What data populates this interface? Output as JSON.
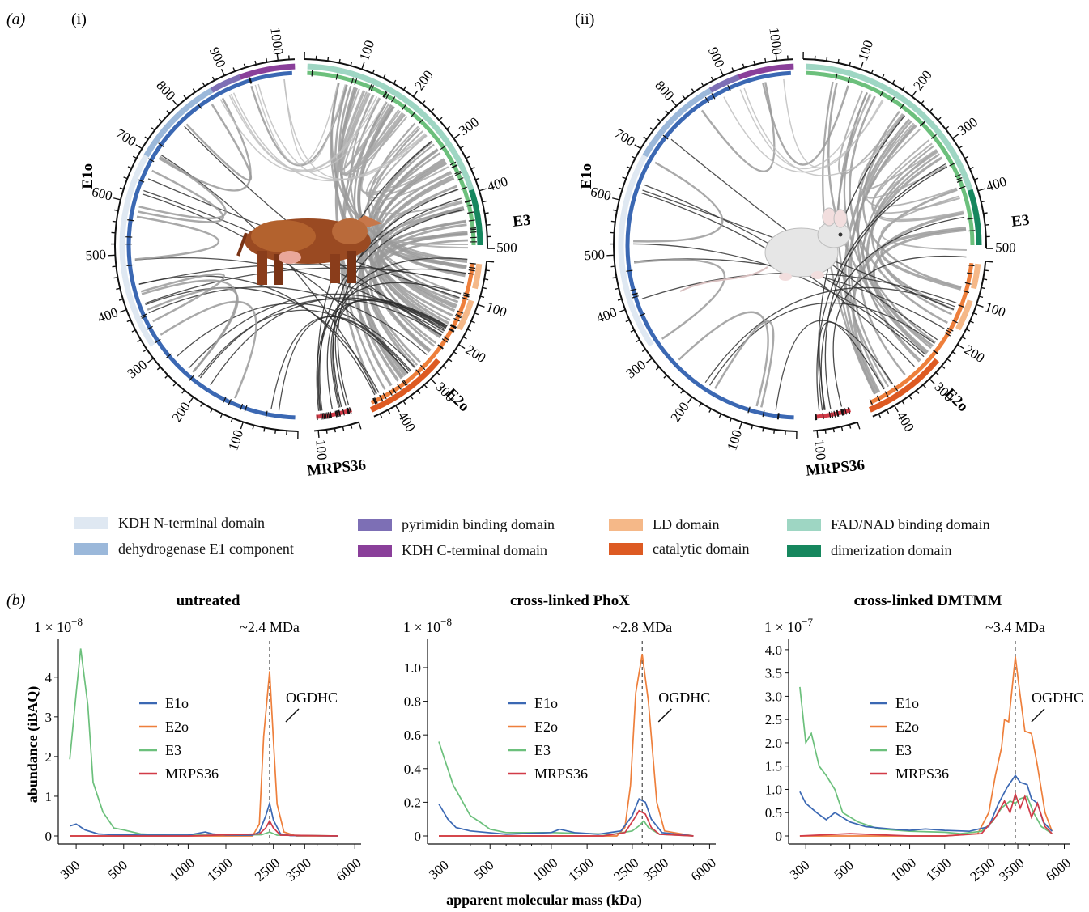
{
  "panel_labels": {
    "a": "(a)",
    "b": "(b)",
    "i": "(i)",
    "ii": "(ii)"
  },
  "circos": {
    "protein_labels": {
      "e1o": "E1o",
      "e2o": "E2o",
      "e3": "E3",
      "mrps36": "MRPS36"
    },
    "e1o_ticks": [
      "100",
      "200",
      "300",
      "400",
      "500",
      "600",
      "700",
      "800",
      "900",
      "1000"
    ],
    "e3_ticks": [
      "100",
      "200",
      "300",
      "400",
      "500"
    ],
    "e2o_ticks": [
      "100",
      "200",
      "300",
      "400"
    ],
    "mrps36_ticks": [
      "100"
    ],
    "left_image": "cow-illustration",
    "right_image": "mouse-illustration"
  },
  "legend": [
    {
      "label": "KDH N-terminal domain",
      "color": "#dfe8f2"
    },
    {
      "label": "dehydrogenase E1 component",
      "color": "#9bb8da"
    },
    {
      "label": "pyrimidin binding domain",
      "color": "#7d6fb5"
    },
    {
      "label": "KDH C-terminal domain",
      "color": "#8a3f9a"
    },
    {
      "label": "LD domain",
      "color": "#f5b888"
    },
    {
      "label": "catalytic domain",
      "color": "#dd5a22"
    },
    {
      "label": "FAD/NAD binding domain",
      "color": "#9ed6c3"
    },
    {
      "label": "dimerization domain",
      "color": "#16875e"
    }
  ],
  "colors": {
    "E1o": "#3b68b3",
    "E2o": "#ee7f3b",
    "E3": "#6cc07c",
    "MRPS36": "#d13b48"
  },
  "axis_label_y": "abundance (iBAQ)",
  "axis_label_x": "apparent molecular mass (kDa)",
  "chart_data": [
    {
      "type": "line",
      "title": "untreated",
      "multiplier": "1 × 10",
      "exponent": "−8",
      "ylim": [
        0,
        4.75
      ],
      "yticks": [
        "0",
        "1",
        "2",
        "3",
        "4"
      ],
      "xticks": [
        "300",
        "500",
        "1000",
        "1500",
        "2500",
        "3500",
        "6000"
      ],
      "xscale": "log",
      "peak_label": "~2.4 MDa",
      "peak_x": 2400,
      "annotation": "OGDHC",
      "series": [
        {
          "name": "E1o",
          "points": [
            [
              280,
              0.25
            ],
            [
              300,
              0.3
            ],
            [
              330,
              0.15
            ],
            [
              380,
              0.05
            ],
            [
              450,
              0.03
            ],
            [
              600,
              0.02
            ],
            [
              1000,
              0.02
            ],
            [
              1200,
              0.1
            ],
            [
              1300,
              0.05
            ],
            [
              1500,
              0.02
            ],
            [
              2000,
              0.02
            ],
            [
              2150,
              0.1
            ],
            [
              2300,
              0.5
            ],
            [
              2400,
              0.82
            ],
            [
              2500,
              0.4
            ],
            [
              2700,
              0.05
            ],
            [
              3000,
              0.01
            ],
            [
              5000,
              0.0
            ]
          ]
        },
        {
          "name": "E2o",
          "points": [
            [
              280,
              0.0
            ],
            [
              1000,
              0.0
            ],
            [
              2000,
              0.0
            ],
            [
              2150,
              0.3
            ],
            [
              2250,
              2.5
            ],
            [
              2400,
              4.15
            ],
            [
              2500,
              2.4
            ],
            [
              2600,
              0.8
            ],
            [
              2800,
              0.1
            ],
            [
              3200,
              0.0
            ],
            [
              5000,
              0.0
            ]
          ]
        },
        {
          "name": "E3",
          "points": [
            [
              280,
              1.93
            ],
            [
              300,
              3.6
            ],
            [
              315,
              4.72
            ],
            [
              340,
              3.3
            ],
            [
              360,
              1.35
            ],
            [
              400,
              0.6
            ],
            [
              450,
              0.2
            ],
            [
              500,
              0.15
            ],
            [
              600,
              0.05
            ],
            [
              800,
              0.02
            ],
            [
              1500,
              0.02
            ],
            [
              2200,
              0.03
            ],
            [
              2400,
              0.1
            ],
            [
              2600,
              0.02
            ],
            [
              5000,
              0.0
            ]
          ]
        },
        {
          "name": "MRPS36",
          "points": [
            [
              280,
              0.0
            ],
            [
              1000,
              0.0
            ],
            [
              2150,
              0.05
            ],
            [
              2300,
              0.2
            ],
            [
              2400,
              0.38
            ],
            [
              2500,
              0.2
            ],
            [
              2700,
              0.02
            ],
            [
              5000,
              0.0
            ]
          ]
        }
      ]
    },
    {
      "type": "line",
      "title": "cross-linked PhoX",
      "multiplier": "1 × 10",
      "exponent": "−8",
      "ylim": [
        0,
        1.12
      ],
      "yticks": [
        "0",
        "0.2",
        "0.4",
        "0.6",
        "0.8",
        "1.0"
      ],
      "xticks": [
        "300",
        "500",
        "1000",
        "1500",
        "2500",
        "3500",
        "6000"
      ],
      "xscale": "log",
      "peak_label": "~2.8 MDa",
      "peak_x": 2800,
      "annotation": "OGDHC",
      "series": [
        {
          "name": "E1o",
          "points": [
            [
              280,
              0.19
            ],
            [
              310,
              0.1
            ],
            [
              340,
              0.05
            ],
            [
              400,
              0.03
            ],
            [
              600,
              0.01
            ],
            [
              1000,
              0.02
            ],
            [
              1100,
              0.04
            ],
            [
              1300,
              0.02
            ],
            [
              1700,
              0.01
            ],
            [
              2200,
              0.03
            ],
            [
              2500,
              0.12
            ],
            [
              2700,
              0.22
            ],
            [
              2900,
              0.2
            ],
            [
              3100,
              0.1
            ],
            [
              3500,
              0.02
            ],
            [
              5000,
              0.0
            ]
          ]
        },
        {
          "name": "E2o",
          "points": [
            [
              280,
              0.0
            ],
            [
              1500,
              0.0
            ],
            [
              2100,
              0.0
            ],
            [
              2300,
              0.05
            ],
            [
              2450,
              0.3
            ],
            [
              2600,
              0.85
            ],
            [
              2800,
              1.08
            ],
            [
              3000,
              0.8
            ],
            [
              3300,
              0.2
            ],
            [
              3600,
              0.03
            ],
            [
              4000,
              0.02
            ],
            [
              5000,
              0.0
            ]
          ]
        },
        {
          "name": "E3",
          "points": [
            [
              280,
              0.56
            ],
            [
              300,
              0.45
            ],
            [
              330,
              0.3
            ],
            [
              360,
              0.22
            ],
            [
              400,
              0.12
            ],
            [
              450,
              0.08
            ],
            [
              500,
              0.04
            ],
            [
              600,
              0.02
            ],
            [
              1000,
              0.02
            ],
            [
              2000,
              0.01
            ],
            [
              2500,
              0.03
            ],
            [
              2700,
              0.06
            ],
            [
              2850,
              0.09
            ],
            [
              3000,
              0.05
            ],
            [
              3400,
              0.01
            ],
            [
              5000,
              0.0
            ]
          ]
        },
        {
          "name": "MRPS36",
          "points": [
            [
              280,
              0.0
            ],
            [
              1800,
              0.0
            ],
            [
              2300,
              0.02
            ],
            [
              2550,
              0.1
            ],
            [
              2700,
              0.15
            ],
            [
              2900,
              0.13
            ],
            [
              3100,
              0.05
            ],
            [
              3400,
              0.01
            ],
            [
              5000,
              0.0
            ]
          ]
        }
      ]
    },
    {
      "type": "line",
      "title": "cross-linked DMTMM",
      "multiplier": "1 × 10",
      "exponent": "−7",
      "ylim": [
        0,
        4.05
      ],
      "yticks": [
        "0",
        "0.5",
        "1.0",
        "1.5",
        "2.0",
        "2.5",
        "3.0",
        "3.5",
        "4.0"
      ],
      "xticks": [
        "300",
        "500",
        "1000",
        "1500",
        "2500",
        "3500",
        "6000"
      ],
      "xscale": "log",
      "peak_label": "~3.4 MDa",
      "peak_x": 3400,
      "annotation": "OGDHC",
      "series": [
        {
          "name": "E1o",
          "points": [
            [
              280,
              0.95
            ],
            [
              300,
              0.7
            ],
            [
              340,
              0.5
            ],
            [
              380,
              0.35
            ],
            [
              420,
              0.5
            ],
            [
              500,
              0.3
            ],
            [
              600,
              0.2
            ],
            [
              800,
              0.15
            ],
            [
              1000,
              0.12
            ],
            [
              1200,
              0.15
            ],
            [
              1500,
              0.12
            ],
            [
              2000,
              0.1
            ],
            [
              2500,
              0.2
            ],
            [
              2800,
              0.7
            ],
            [
              3100,
              1.05
            ],
            [
              3400,
              1.3
            ],
            [
              3600,
              1.15
            ],
            [
              3900,
              1.1
            ],
            [
              4100,
              0.8
            ],
            [
              4400,
              0.7
            ],
            [
              4700,
              0.3
            ],
            [
              5200,
              0.1
            ]
          ]
        },
        {
          "name": "E2o",
          "points": [
            [
              280,
              0.0
            ],
            [
              1500,
              0.0
            ],
            [
              2200,
              0.05
            ],
            [
              2500,
              0.5
            ],
            [
              2700,
              1.3
            ],
            [
              2900,
              1.9
            ],
            [
              3000,
              2.5
            ],
            [
              3150,
              2.45
            ],
            [
              3300,
              3.3
            ],
            [
              3400,
              3.85
            ],
            [
              3600,
              3.0
            ],
            [
              3800,
              2.25
            ],
            [
              4100,
              2.2
            ],
            [
              4400,
              1.5
            ],
            [
              4800,
              0.5
            ],
            [
              5200,
              0.1
            ]
          ]
        },
        {
          "name": "E3",
          "points": [
            [
              280,
              3.2
            ],
            [
              300,
              2.0
            ],
            [
              320,
              2.2
            ],
            [
              350,
              1.5
            ],
            [
              380,
              1.3
            ],
            [
              420,
              1.0
            ],
            [
              460,
              0.5
            ],
            [
              550,
              0.3
            ],
            [
              700,
              0.15
            ],
            [
              1000,
              0.1
            ],
            [
              1500,
              0.08
            ],
            [
              1800,
              0.05
            ],
            [
              2300,
              0.1
            ],
            [
              2600,
              0.3
            ],
            [
              2900,
              0.6
            ],
            [
              3200,
              0.75
            ],
            [
              3400,
              0.7
            ],
            [
              3600,
              0.8
            ],
            [
              3900,
              0.85
            ],
            [
              4200,
              0.5
            ],
            [
              4600,
              0.2
            ],
            [
              5200,
              0.05
            ]
          ]
        },
        {
          "name": "MRPS36",
          "points": [
            [
              280,
              0.0
            ],
            [
              500,
              0.05
            ],
            [
              1000,
              0.0
            ],
            [
              1500,
              0.0
            ],
            [
              2300,
              0.05
            ],
            [
              2700,
              0.4
            ],
            [
              3000,
              0.75
            ],
            [
              3200,
              0.5
            ],
            [
              3400,
              0.9
            ],
            [
              3600,
              0.6
            ],
            [
              3800,
              0.85
            ],
            [
              4100,
              0.4
            ],
            [
              4400,
              0.7
            ],
            [
              4800,
              0.2
            ],
            [
              5200,
              0.05
            ]
          ]
        }
      ]
    }
  ]
}
